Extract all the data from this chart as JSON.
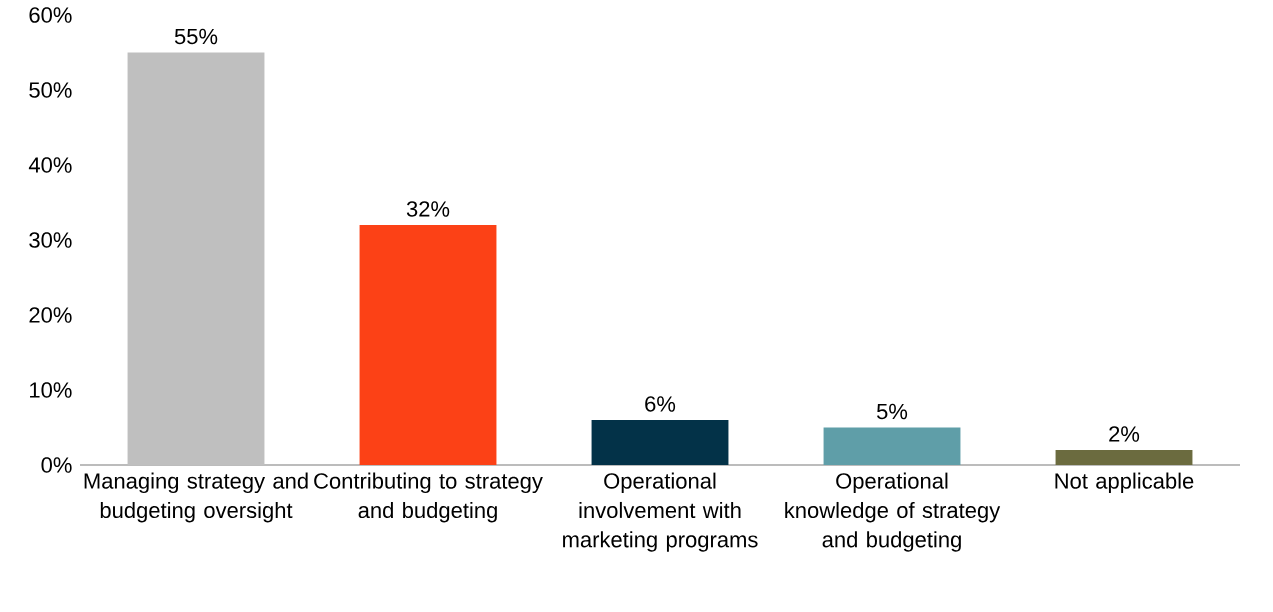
{
  "chart_data": {
    "type": "bar",
    "categories": [
      "Managing strategy and budgeting oversight",
      "Contributing to strategy and budgeting",
      "Operational involvement with marketing programs",
      "Operational knowledge of strategy and budgeting",
      "Not applicable"
    ],
    "values": [
      55,
      32,
      6,
      5,
      2
    ],
    "value_labels": [
      "55%",
      "32%",
      "6%",
      "5%",
      "2%"
    ],
    "colors": [
      "#bfbfbf",
      "#fc4116",
      "#033248",
      "#5f9ea8",
      "#6b6b3f"
    ],
    "ylim": [
      0,
      60
    ],
    "yticks": [
      {
        "value": 0,
        "label": "0%"
      },
      {
        "value": 10,
        "label": "10%"
      },
      {
        "value": 20,
        "label": "20%"
      },
      {
        "value": 30,
        "label": "30%"
      },
      {
        "value": 40,
        "label": "40%"
      },
      {
        "value": 50,
        "label": "50%"
      },
      {
        "value": 60,
        "label": "60%"
      }
    ]
  }
}
